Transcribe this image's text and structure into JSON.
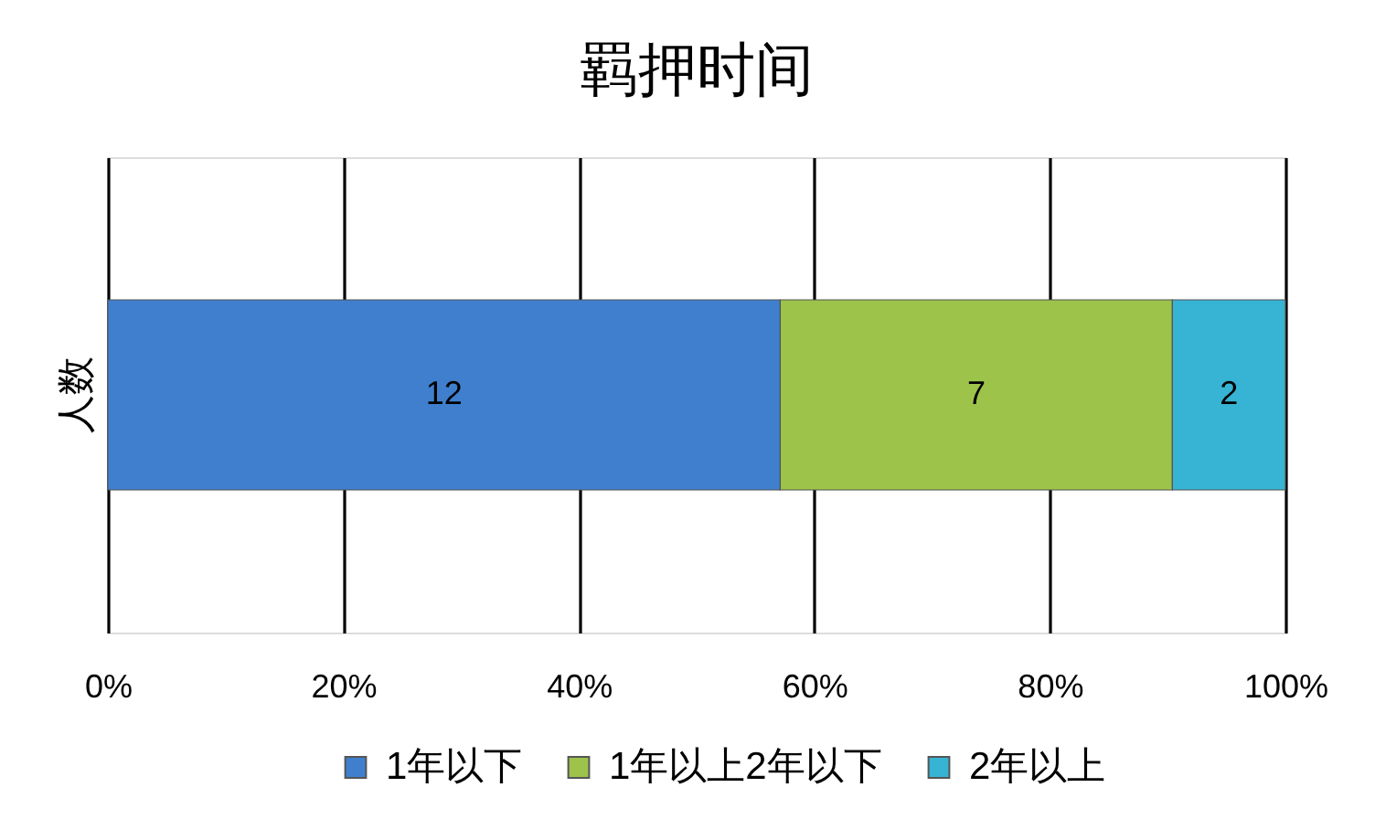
{
  "chart_data": {
    "type": "bar",
    "orientation": "horizontal",
    "stacked": true,
    "title": "羁押时间",
    "categories": [
      "人数"
    ],
    "series": [
      {
        "name": "1年以下",
        "color": "#3f7fcd",
        "values": [
          57.1
        ]
      },
      {
        "name": "1年以上2年以下",
        "color": "#9dc34a",
        "values": [
          33.3
        ]
      },
      {
        "name": "2年以上",
        "color": "#37b3d3",
        "values": [
          9.6
        ]
      }
    ],
    "annotations": [
      {
        "text": "12",
        "x": 28.55,
        "y": "人数"
      },
      {
        "text": "7",
        "x": 73.75,
        "y": "人数"
      },
      {
        "text": "2",
        "x": 95.2,
        "y": "人数"
      }
    ],
    "xlim": [
      0,
      100
    ],
    "xticks": [
      {
        "value": 0,
        "label": "0%"
      },
      {
        "value": 20,
        "label": "20%"
      },
      {
        "value": 40,
        "label": "40%"
      },
      {
        "value": 60,
        "label": "60%"
      },
      {
        "value": 80,
        "label": "80%"
      },
      {
        "value": 100,
        "label": "100%"
      }
    ],
    "grid": "x",
    "legend": "bottom"
  }
}
